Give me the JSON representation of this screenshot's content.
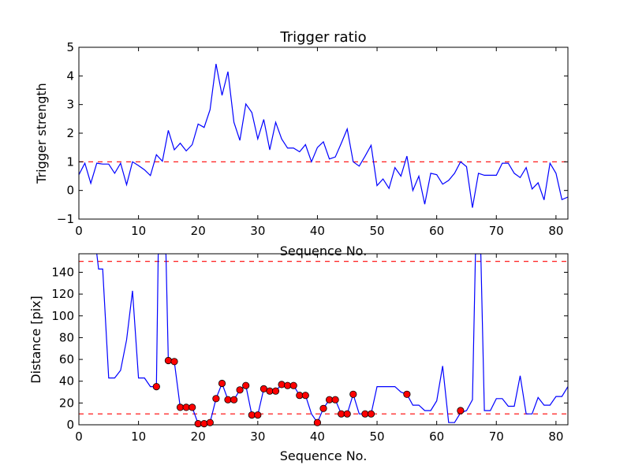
{
  "chart_data": [
    {
      "type": "line",
      "title": "Trigger ratio",
      "xlabel": "Sequence No.",
      "ylabel": "Trigger strength",
      "xlim": [
        0,
        82
      ],
      "ylim": [
        -1,
        5
      ],
      "xticks": [
        0,
        10,
        20,
        30,
        40,
        50,
        60,
        70,
        80
      ],
      "yticks": [
        -1,
        0,
        1,
        2,
        3,
        4,
        5
      ],
      "threshold": 1,
      "series": [
        {
          "name": "trigger strength",
          "color": "#0000ff",
          "x": [
            0,
            1,
            2,
            3,
            4,
            5,
            6,
            7,
            8,
            9,
            10,
            11,
            12,
            13,
            14,
            15,
            16,
            17,
            18,
            19,
            20,
            21,
            22,
            23,
            24,
            25,
            26,
            27,
            28,
            29,
            30,
            31,
            32,
            33,
            34,
            35,
            36,
            37,
            38,
            39,
            40,
            41,
            42,
            43,
            44,
            45,
            46,
            47,
            48,
            49,
            50,
            51,
            52,
            53,
            54,
            55,
            56,
            57,
            58,
            59,
            60,
            61,
            62,
            63,
            64,
            65,
            66,
            67,
            68,
            69,
            70,
            71,
            72,
            73,
            74,
            75,
            76,
            77,
            78,
            79,
            80,
            81,
            82
          ],
          "y": [
            0.55,
            0.95,
            0.25,
            0.95,
            0.92,
            0.92,
            0.6,
            0.95,
            0.2,
            1.0,
            0.87,
            0.72,
            0.52,
            1.25,
            1.02,
            2.1,
            1.42,
            1.65,
            1.38,
            1.6,
            2.32,
            2.2,
            2.82,
            4.42,
            3.32,
            4.15,
            2.38,
            1.75,
            3.02,
            2.72,
            1.8,
            2.48,
            1.42,
            2.38,
            1.8,
            1.48,
            1.48,
            1.35,
            1.6,
            1.0,
            1.5,
            1.7,
            1.1,
            1.17,
            1.65,
            2.15,
            1.0,
            0.85,
            1.2,
            1.58,
            0.17,
            0.4,
            0.07,
            0.8,
            0.5,
            1.2,
            0.0,
            0.5,
            -0.48,
            0.6,
            0.55,
            0.22,
            0.35,
            0.6,
            1.0,
            0.83,
            -0.6,
            0.6,
            0.53,
            0.53,
            0.53,
            0.95,
            0.95,
            0.6,
            0.45,
            0.8,
            0.05,
            0.27,
            -0.33,
            0.95,
            0.6,
            -0.32,
            -0.23
          ]
        }
      ]
    },
    {
      "type": "line",
      "title": "",
      "xlabel": "Sequence No.",
      "ylabel": "Distance [pix]",
      "xlim": [
        0,
        82
      ],
      "ylim": [
        0,
        157
      ],
      "xticks": [
        0,
        10,
        20,
        30,
        40,
        50,
        60,
        70,
        80
      ],
      "yticks": [
        0,
        20,
        40,
        60,
        80,
        100,
        120,
        140
      ],
      "thresholds": [
        10,
        150
      ],
      "series": [
        {
          "name": "distance",
          "color": "#0000ff",
          "x": [
            3,
            3.3,
            4,
            5,
            6,
            7,
            8,
            9,
            10,
            11,
            12,
            13,
            13.3,
            14.6,
            15,
            16,
            17,
            18,
            19,
            20,
            21,
            22,
            23,
            24,
            25,
            26,
            27,
            28,
            29,
            30,
            31,
            32,
            33,
            34,
            35,
            36,
            37,
            38,
            39,
            40,
            41,
            42,
            43,
            44,
            45,
            46,
            47,
            48,
            49,
            50,
            51,
            52,
            53,
            54,
            55,
            56,
            57,
            58,
            59,
            60,
            61,
            62,
            63,
            64,
            65,
            66,
            66.5,
            67.4,
            68,
            69,
            70,
            71,
            72,
            73,
            74,
            75,
            76,
            77,
            78,
            79,
            80,
            81,
            82
          ],
          "y": [
            157,
            143,
            143,
            43,
            43,
            50,
            78,
            123,
            43,
            43,
            35,
            35,
            157,
            157,
            59,
            58,
            16,
            16,
            16,
            1,
            1,
            2,
            24,
            38,
            23,
            23,
            32,
            36,
            9,
            9,
            33,
            31,
            31,
            37,
            36,
            36,
            27,
            27,
            10,
            2,
            15,
            23,
            23,
            10,
            10,
            28,
            10,
            10,
            10,
            35,
            35,
            35,
            35,
            30,
            28,
            18,
            18,
            13,
            13,
            22,
            54,
            2,
            2,
            11,
            13,
            23,
            157,
            157,
            13,
            13,
            24,
            24,
            17,
            17,
            45,
            10,
            10,
            25,
            18,
            18,
            26,
            26,
            35
          ]
        },
        {
          "name": "detections",
          "color": "#ff0000",
          "marker": "circle",
          "x": [
            13,
            15,
            16,
            17,
            18,
            19,
            20,
            21,
            22,
            23,
            24,
            25,
            26,
            27,
            28,
            29,
            30,
            31,
            32,
            33,
            34,
            35,
            36,
            37,
            38,
            40,
            41,
            42,
            43,
            44,
            45,
            46,
            48,
            49,
            55,
            64
          ],
          "y": [
            35,
            59,
            58,
            16,
            16,
            16,
            1,
            1,
            2,
            24,
            38,
            23,
            23,
            32,
            36,
            9,
            9,
            33,
            31,
            31,
            37,
            36,
            36,
            27,
            27,
            2,
            15,
            23,
            23,
            10,
            10,
            28,
            10,
            10,
            28,
            13
          ]
        }
      ]
    }
  ]
}
